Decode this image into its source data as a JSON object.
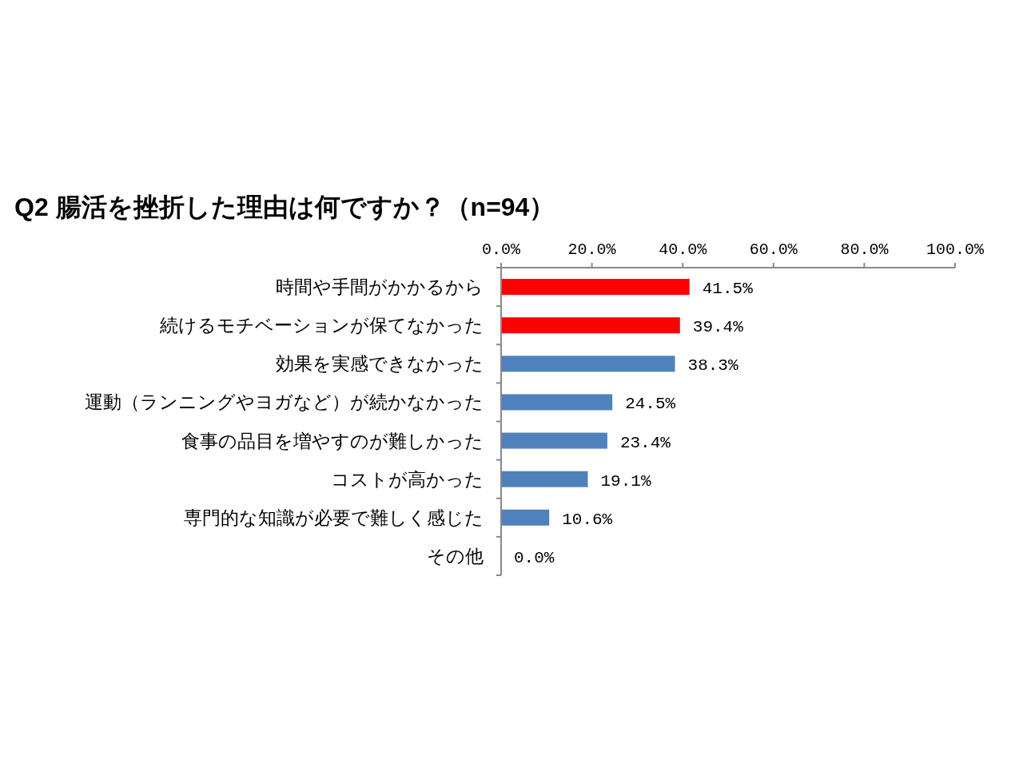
{
  "chart_data": {
    "type": "bar",
    "orientation": "horizontal",
    "title": "Q2 腸活を挫折した理由は何ですか？（n=94）",
    "categories": [
      "時間や手間がかかるから",
      "続けるモチベーションが保てなかった",
      "効果を実感できなかった",
      "運動（ランニングやヨガなど）が続かなかった",
      "食事の品目を増やすのが難しかった",
      "コストが高かった",
      "専門的な知識が必要で難しく感じた",
      "その他"
    ],
    "values": [
      41.5,
      39.4,
      38.3,
      24.5,
      23.4,
      19.1,
      10.6,
      0.0
    ],
    "colors": [
      "#ff0000",
      "#ff0000",
      "#4f81bd",
      "#4f81bd",
      "#4f81bd",
      "#4f81bd",
      "#4f81bd",
      "#4f81bd"
    ],
    "value_labels": [
      "41.5%",
      "39.4%",
      "38.3%",
      "24.5%",
      "23.4%",
      "19.1%",
      "10.6%",
      "0.0%"
    ],
    "xlim": [
      0,
      100
    ],
    "xticks": [
      {
        "value": 0,
        "label": "0.0%"
      },
      {
        "value": 20,
        "label": "20.0%"
      },
      {
        "value": 40,
        "label": "40.0%"
      },
      {
        "value": 60,
        "label": "60.0%"
      },
      {
        "value": 80,
        "label": "80.0%"
      },
      {
        "value": 100,
        "label": "100.0%"
      }
    ]
  }
}
